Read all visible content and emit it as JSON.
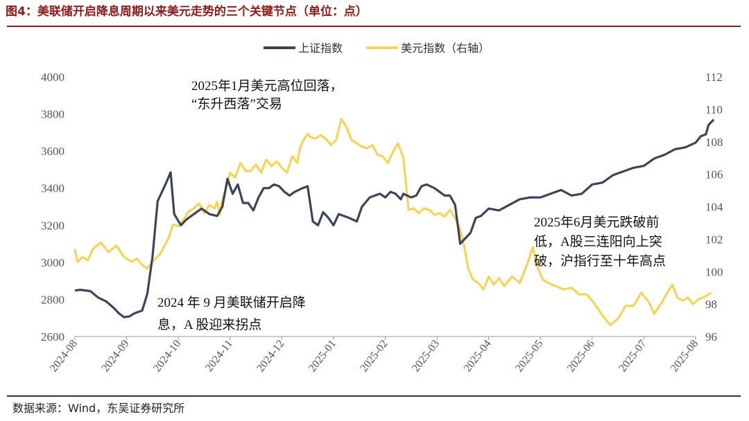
{
  "title": "图4：美联储开启降息周期以来美元走势的三个关键节点（单位：点）",
  "source": "数据来源：Wind，东吴证券研究所",
  "colors": {
    "title": "#8b1a1a",
    "sse": "#3b4458",
    "dxy": "#f5d45a"
  },
  "chart_data": {
    "type": "line",
    "legend": [
      {
        "name": "上证指数",
        "color": "#3b4458"
      },
      {
        "name": "美元指数（右轴）",
        "color": "#f5d45a"
      }
    ],
    "x_ticks": [
      "2024-08",
      "2024-09",
      "2024-10",
      "2024-11",
      "2024-12",
      "2025-01",
      "2025-02",
      "2025-03",
      "2025-04",
      "2025-05",
      "2025-06",
      "2025-07",
      "2025-08"
    ],
    "y_left": {
      "min": 2600,
      "max": 4000,
      "ticks": [
        "2600",
        "2800",
        "3000",
        "3200",
        "3400",
        "3600",
        "3800",
        "4000"
      ]
    },
    "y_right": {
      "min": 96,
      "max": 112,
      "ticks": [
        "96",
        "98",
        "100",
        "102",
        "104",
        "106",
        "108",
        "110",
        "112"
      ]
    },
    "annotations": [
      {
        "lines": [
          "2025年1月美元高位回落，",
          "“东升西落”交易"
        ]
      },
      {
        "lines": [
          "2024 年 9 月美联储开启降",
          "息，A 股迎来拐点"
        ]
      },
      {
        "lines": [
          "2025年6月美元跌破前",
          "低，A股三连阳向上突",
          "破，沪指行至十年高点"
        ]
      }
    ],
    "series": [
      {
        "name": "上证指数",
        "axis": "left",
        "points": [
          [
            0,
            2848
          ],
          [
            0.1,
            2852
          ],
          [
            0.3,
            2845
          ],
          [
            0.45,
            2810
          ],
          [
            0.6,
            2790
          ],
          [
            0.75,
            2755
          ],
          [
            0.85,
            2725
          ],
          [
            0.95,
            2704
          ],
          [
            1.05,
            2708
          ],
          [
            1.15,
            2725
          ],
          [
            1.3,
            2740
          ],
          [
            1.4,
            2830
          ],
          [
            1.5,
            3030
          ],
          [
            1.6,
            3330
          ],
          [
            1.75,
            3420
          ],
          [
            1.85,
            3485
          ],
          [
            1.92,
            3260
          ],
          [
            2.05,
            3200
          ],
          [
            2.15,
            3230
          ],
          [
            2.3,
            3260
          ],
          [
            2.45,
            3290
          ],
          [
            2.6,
            3260
          ],
          [
            2.75,
            3250
          ],
          [
            2.85,
            3300
          ],
          [
            2.95,
            3450
          ],
          [
            3.05,
            3370
          ],
          [
            3.15,
            3420
          ],
          [
            3.25,
            3320
          ],
          [
            3.35,
            3320
          ],
          [
            3.45,
            3280
          ],
          [
            3.55,
            3350
          ],
          [
            3.65,
            3400
          ],
          [
            3.75,
            3400
          ],
          [
            3.85,
            3420
          ],
          [
            3.95,
            3410
          ],
          [
            4.05,
            3380
          ],
          [
            4.15,
            3360
          ],
          [
            4.25,
            3380
          ],
          [
            4.4,
            3400
          ],
          [
            4.5,
            3410
          ],
          [
            4.6,
            3220
          ],
          [
            4.7,
            3200
          ],
          [
            4.8,
            3270
          ],
          [
            4.9,
            3240
          ],
          [
            5.0,
            3200
          ],
          [
            5.1,
            3260
          ],
          [
            5.2,
            3250
          ],
          [
            5.3,
            3240
          ],
          [
            5.45,
            3220
          ],
          [
            5.55,
            3300
          ],
          [
            5.7,
            3350
          ],
          [
            5.8,
            3360
          ],
          [
            5.9,
            3370
          ],
          [
            6.0,
            3350
          ],
          [
            6.1,
            3380
          ],
          [
            6.2,
            3370
          ],
          [
            6.3,
            3340
          ],
          [
            6.35,
            3370
          ],
          [
            6.5,
            3350
          ],
          [
            6.6,
            3360
          ],
          [
            6.7,
            3410
          ],
          [
            6.8,
            3420
          ],
          [
            6.95,
            3400
          ],
          [
            7.05,
            3380
          ],
          [
            7.15,
            3360
          ],
          [
            7.25,
            3360
          ],
          [
            7.35,
            3310
          ],
          [
            7.45,
            3100
          ],
          [
            7.55,
            3130
          ],
          [
            7.65,
            3160
          ],
          [
            7.75,
            3240
          ],
          [
            7.85,
            3250
          ],
          [
            8.0,
            3290
          ],
          [
            8.2,
            3280
          ],
          [
            8.4,
            3310
          ],
          [
            8.6,
            3340
          ],
          [
            8.8,
            3350
          ],
          [
            9.0,
            3350
          ],
          [
            9.2,
            3370
          ],
          [
            9.4,
            3390
          ],
          [
            9.6,
            3360
          ],
          [
            9.8,
            3370
          ],
          [
            10.0,
            3420
          ],
          [
            10.2,
            3430
          ],
          [
            10.4,
            3470
          ],
          [
            10.6,
            3490
          ],
          [
            10.8,
            3510
          ],
          [
            11.0,
            3520
          ],
          [
            11.2,
            3560
          ],
          [
            11.4,
            3580
          ],
          [
            11.6,
            3610
          ],
          [
            11.8,
            3620
          ],
          [
            12.0,
            3645
          ],
          [
            12.1,
            3680
          ],
          [
            12.2,
            3690
          ],
          [
            12.25,
            3740
          ],
          [
            12.35,
            3770
          ]
        ]
      },
      {
        "name": "美元指数（右轴）",
        "axis": "right",
        "points": [
          [
            0,
            101.4
          ],
          [
            0.05,
            100.6
          ],
          [
            0.15,
            100.9
          ],
          [
            0.25,
            100.7
          ],
          [
            0.35,
            101.4
          ],
          [
            0.5,
            101.8
          ],
          [
            0.65,
            101.2
          ],
          [
            0.8,
            101.6
          ],
          [
            0.95,
            100.9
          ],
          [
            1.1,
            100.6
          ],
          [
            1.2,
            100.8
          ],
          [
            1.3,
            100.4
          ],
          [
            1.4,
            100.2
          ],
          [
            1.5,
            100.6
          ],
          [
            1.65,
            101.1
          ],
          [
            1.8,
            102.0
          ],
          [
            1.9,
            102.9
          ],
          [
            2.0,
            102.8
          ],
          [
            2.1,
            103.2
          ],
          [
            2.2,
            103.7
          ],
          [
            2.3,
            103.9
          ],
          [
            2.4,
            104.2
          ],
          [
            2.5,
            103.6
          ],
          [
            2.6,
            104.1
          ],
          [
            2.7,
            103.9
          ],
          [
            2.75,
            104.3
          ],
          [
            2.8,
            103.5
          ],
          [
            2.85,
            104.4
          ],
          [
            2.92,
            105.1
          ],
          [
            3.0,
            106.1
          ],
          [
            3.1,
            105.8
          ],
          [
            3.2,
            106.7
          ],
          [
            3.3,
            106.2
          ],
          [
            3.4,
            106.2
          ],
          [
            3.5,
            106.6
          ],
          [
            3.6,
            106.1
          ],
          [
            3.7,
            106.9
          ],
          [
            3.8,
            106.5
          ],
          [
            3.9,
            106.8
          ],
          [
            4.0,
            106.4
          ],
          [
            4.1,
            106.1
          ],
          [
            4.2,
            107.1
          ],
          [
            4.3,
            106.7
          ],
          [
            4.35,
            107.6
          ],
          [
            4.4,
            108.0
          ],
          [
            4.5,
            108.5
          ],
          [
            4.55,
            108.3
          ],
          [
            4.65,
            108.2
          ],
          [
            4.75,
            108.4
          ],
          [
            4.85,
            108.2
          ],
          [
            4.95,
            107.8
          ],
          [
            5.05,
            108.1
          ],
          [
            5.15,
            109.4
          ],
          [
            5.25,
            108.9
          ],
          [
            5.35,
            108.1
          ],
          [
            5.45,
            107.9
          ],
          [
            5.55,
            107.7
          ],
          [
            5.65,
            107.6
          ],
          [
            5.75,
            107.8
          ],
          [
            5.85,
            107.2
          ],
          [
            5.95,
            107.1
          ],
          [
            6.05,
            106.7
          ],
          [
            6.15,
            107.4
          ],
          [
            6.25,
            107.9
          ],
          [
            6.35,
            107.0
          ],
          [
            6.45,
            103.8
          ],
          [
            6.55,
            103.9
          ],
          [
            6.65,
            103.6
          ],
          [
            6.75,
            103.9
          ],
          [
            6.85,
            103.8
          ],
          [
            6.95,
            103.5
          ],
          [
            7.05,
            103.6
          ],
          [
            7.15,
            103.4
          ],
          [
            7.25,
            103.8
          ],
          [
            7.35,
            103.3
          ],
          [
            7.45,
            102.6
          ],
          [
            7.55,
            101.2
          ],
          [
            7.6,
            100.2
          ],
          [
            7.7,
            99.5
          ],
          [
            7.8,
            99.3
          ],
          [
            7.9,
            98.9
          ],
          [
            8.0,
            99.7
          ],
          [
            8.1,
            99.2
          ],
          [
            8.2,
            99.6
          ],
          [
            8.3,
            99.1
          ],
          [
            8.45,
            99.7
          ],
          [
            8.6,
            99.3
          ],
          [
            8.75,
            100.5
          ],
          [
            8.85,
            101.5
          ],
          [
            8.95,
            100.2
          ],
          [
            9.05,
            99.5
          ],
          [
            9.15,
            99.3
          ],
          [
            9.3,
            99.1
          ],
          [
            9.45,
            98.9
          ],
          [
            9.6,
            99.0
          ],
          [
            9.75,
            98.6
          ],
          [
            9.9,
            98.6
          ],
          [
            10.05,
            98.0
          ],
          [
            10.2,
            97.3
          ],
          [
            10.35,
            96.7
          ],
          [
            10.5,
            97.1
          ],
          [
            10.65,
            97.9
          ],
          [
            10.8,
            97.9
          ],
          [
            10.95,
            98.7
          ],
          [
            11.1,
            98.1
          ],
          [
            11.2,
            97.4
          ],
          [
            11.35,
            98.1
          ],
          [
            11.45,
            98.7
          ],
          [
            11.55,
            99.2
          ],
          [
            11.65,
            98.4
          ],
          [
            11.75,
            98.2
          ],
          [
            11.85,
            98.4
          ],
          [
            11.95,
            98.0
          ],
          [
            12.05,
            98.3
          ],
          [
            12.15,
            98.4
          ],
          [
            12.3,
            98.7
          ]
        ]
      }
    ]
  }
}
